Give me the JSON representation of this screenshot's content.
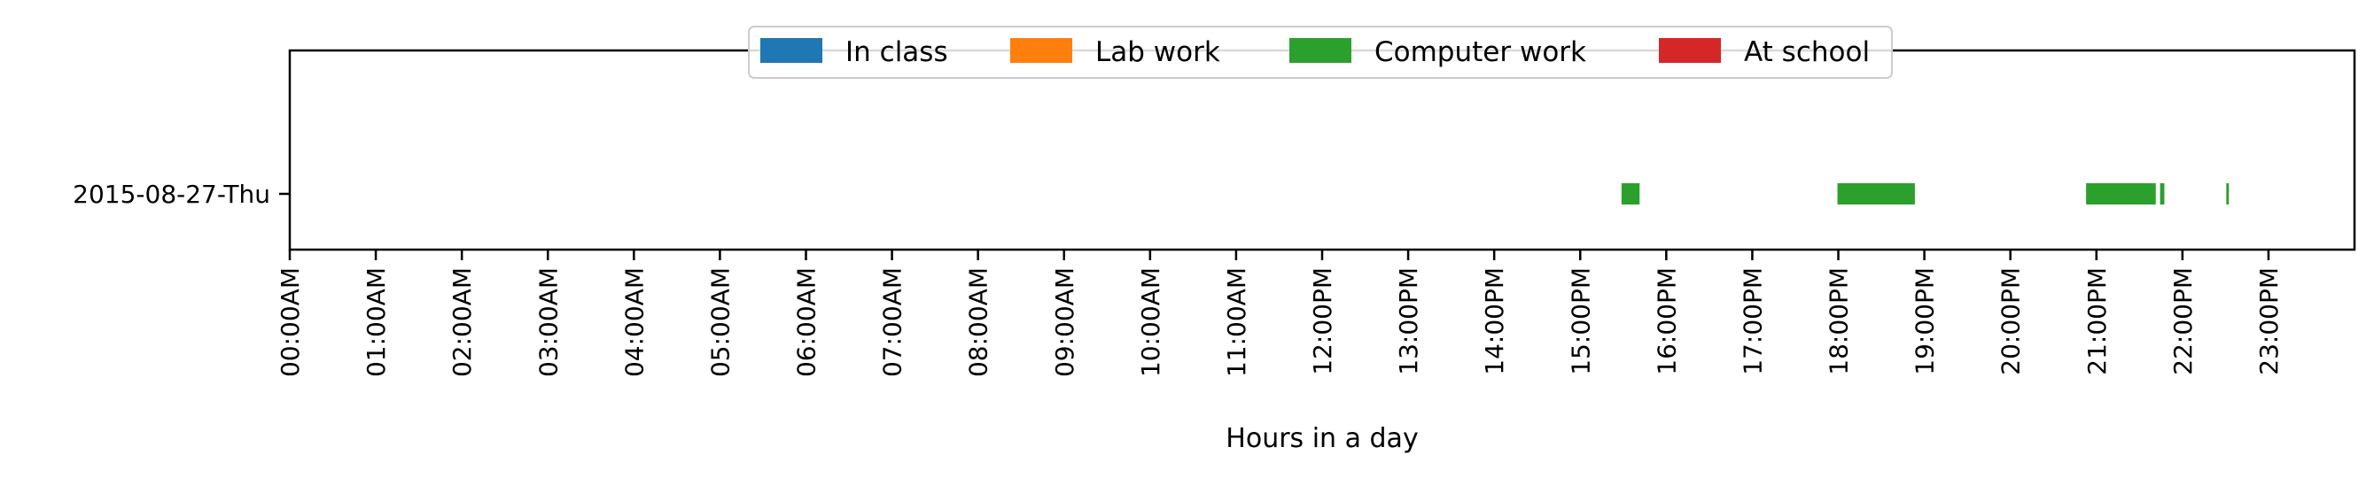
{
  "chart_data": {
    "type": "broken_barh",
    "xlabel": "Hours in a day",
    "ylabel": "",
    "xlim": [
      0,
      24
    ],
    "x_ticks": [
      {
        "value": 0,
        "label": "00:00AM"
      },
      {
        "value": 1,
        "label": "01:00AM"
      },
      {
        "value": 2,
        "label": "02:00AM"
      },
      {
        "value": 3,
        "label": "03:00AM"
      },
      {
        "value": 4,
        "label": "04:00AM"
      },
      {
        "value": 5,
        "label": "05:00AM"
      },
      {
        "value": 6,
        "label": "06:00AM"
      },
      {
        "value": 7,
        "label": "07:00AM"
      },
      {
        "value": 8,
        "label": "08:00AM"
      },
      {
        "value": 9,
        "label": "09:00AM"
      },
      {
        "value": 10,
        "label": "10:00AM"
      },
      {
        "value": 11,
        "label": "11:00AM"
      },
      {
        "value": 12,
        "label": "12:00PM"
      },
      {
        "value": 13,
        "label": "13:00PM"
      },
      {
        "value": 14,
        "label": "14:00PM"
      },
      {
        "value": 15,
        "label": "15:00PM"
      },
      {
        "value": 16,
        "label": "16:00PM"
      },
      {
        "value": 17,
        "label": "17:00PM"
      },
      {
        "value": 18,
        "label": "18:00PM"
      },
      {
        "value": 19,
        "label": "19:00PM"
      },
      {
        "value": 20,
        "label": "20:00PM"
      },
      {
        "value": 21,
        "label": "21:00PM"
      },
      {
        "value": 22,
        "label": "22:00PM"
      },
      {
        "value": 23,
        "label": "23:00PM"
      }
    ],
    "rows": [
      "2015-08-27-Thu"
    ],
    "legend": {
      "placement": "upper center",
      "entries": [
        {
          "name": "In class",
          "color": "#1f77b4"
        },
        {
          "name": "Lab work",
          "color": "#ff7f0e"
        },
        {
          "name": "Computer work",
          "color": "#2ca02c"
        },
        {
          "name": "At school",
          "color": "#d62728"
        }
      ]
    },
    "series": [
      {
        "name": "In class",
        "color": "#1f77b4",
        "segments": []
      },
      {
        "name": "Lab work",
        "color": "#ff7f0e",
        "segments": []
      },
      {
        "name": "Computer work",
        "color": "#2ca02c",
        "segments": [
          {
            "row": "2015-08-27-Thu",
            "start": 15.48,
            "end": 15.69
          },
          {
            "row": "2015-08-27-Thu",
            "start": 17.99,
            "end": 18.89
          },
          {
            "row": "2015-08-27-Thu",
            "start": 20.88,
            "end": 21.69
          },
          {
            "row": "2015-08-27-Thu",
            "start": 21.74,
            "end": 21.79
          },
          {
            "row": "2015-08-27-Thu",
            "start": 22.51,
            "end": 22.54
          }
        ]
      },
      {
        "name": "At school",
        "color": "#d62728",
        "segments": []
      }
    ]
  }
}
